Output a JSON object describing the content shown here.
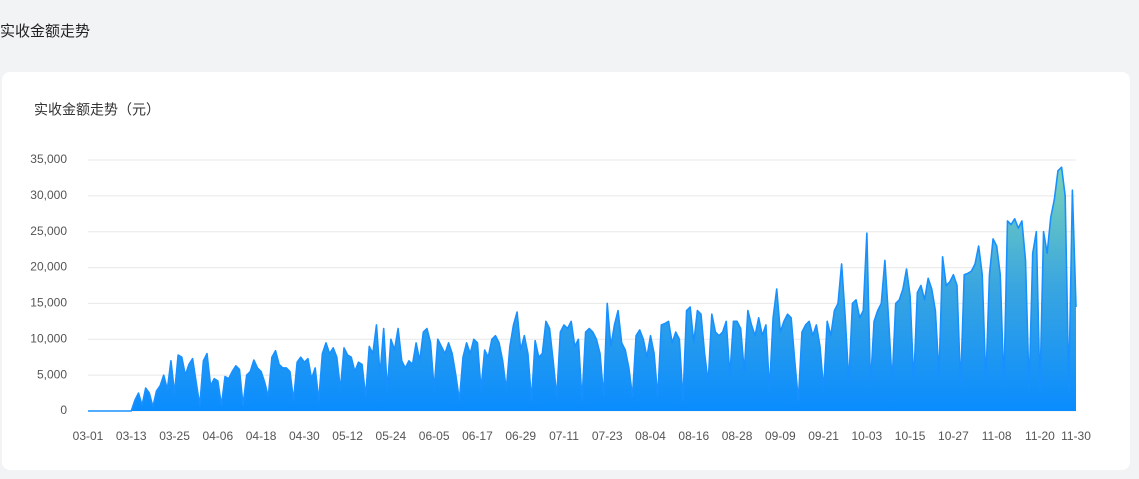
{
  "header": {
    "title": "实收金额走势"
  },
  "chart_data": {
    "type": "area",
    "title": "实收金额走势（元）",
    "categories": [
      "03-01",
      null,
      null,
      null,
      null,
      null,
      null,
      null,
      null,
      null,
      null,
      null,
      "03-13",
      null,
      null,
      null,
      null,
      null,
      null,
      null,
      null,
      null,
      null,
      null,
      "03-25",
      null,
      null,
      null,
      null,
      null,
      null,
      null,
      null,
      null,
      null,
      null,
      "04-06",
      null,
      null,
      null,
      null,
      null,
      null,
      null,
      null,
      null,
      null,
      null,
      "04-18",
      null,
      null,
      null,
      null,
      null,
      null,
      null,
      null,
      null,
      null,
      null,
      "04-30",
      null,
      null,
      null,
      null,
      null,
      null,
      null,
      null,
      null,
      null,
      null,
      "05-12",
      null,
      null,
      null,
      null,
      null,
      null,
      null,
      null,
      null,
      null,
      null,
      "05-24",
      null,
      null,
      null,
      null,
      null,
      null,
      null,
      null,
      null,
      null,
      null,
      "06-05",
      null,
      null,
      null,
      null,
      null,
      null,
      null,
      null,
      null,
      null,
      null,
      "06-17",
      null,
      null,
      null,
      null,
      null,
      null,
      null,
      null,
      null,
      null,
      null,
      "06-29",
      null,
      null,
      null,
      null,
      null,
      null,
      null,
      null,
      null,
      null,
      null,
      "07-11",
      null,
      null,
      null,
      null,
      null,
      null,
      null,
      null,
      null,
      null,
      null,
      "07-23",
      null,
      null,
      null,
      null,
      null,
      null,
      null,
      null,
      null,
      null,
      null,
      "08-04",
      null,
      null,
      null,
      null,
      null,
      null,
      null,
      null,
      null,
      null,
      null,
      "08-16",
      null,
      null,
      null,
      null,
      null,
      null,
      null,
      null,
      null,
      null,
      null,
      "08-28",
      null,
      null,
      null,
      null,
      null,
      null,
      null,
      null,
      null,
      null,
      null,
      "09-09",
      null,
      null,
      null,
      null,
      null,
      null,
      null,
      null,
      null,
      null,
      null,
      "09-21",
      null,
      null,
      null,
      null,
      null,
      null,
      null,
      null,
      null,
      null,
      null,
      "10-03",
      null,
      null,
      null,
      null,
      null,
      null,
      null,
      null,
      null,
      null,
      null,
      "10-15",
      null,
      null,
      null,
      null,
      null,
      null,
      null,
      null,
      null,
      null,
      null,
      "10-27",
      null,
      null,
      null,
      null,
      null,
      null,
      null,
      null,
      null,
      null,
      null,
      "11-08",
      null,
      null,
      null,
      null,
      null,
      null,
      null,
      null,
      null,
      null,
      null,
      "11-20",
      null,
      null,
      null,
      null,
      null,
      null,
      null,
      null,
      null,
      "11-30"
    ],
    "values": [
      0,
      0,
      0,
      0,
      0,
      0,
      0,
      0,
      0,
      0,
      0,
      0,
      0,
      1500,
      2500,
      800,
      3200,
      2500,
      600,
      2800,
      3500,
      5000,
      3000,
      7000,
      2500,
      7800,
      7500,
      5000,
      6500,
      7300,
      4000,
      800,
      7000,
      8000,
      3500,
      4500,
      4200,
      800,
      4800,
      4500,
      5500,
      6300,
      5800,
      800,
      5000,
      5500,
      7100,
      6000,
      5500,
      4000,
      2000,
      7500,
      8400,
      6500,
      6000,
      6000,
      5500,
      1500,
      6800,
      7500,
      6800,
      7300,
      4500,
      6000,
      1500,
      8000,
      9500,
      8000,
      8800,
      7500,
      3000,
      8800,
      7800,
      7500,
      5500,
      6800,
      6500,
      2000,
      9000,
      8000,
      12000,
      5000,
      11500,
      3000,
      10000,
      8500,
      11500,
      7000,
      6000,
      7000,
      6500,
      9500,
      7000,
      11000,
      11500,
      9500,
      3000,
      10000,
      9000,
      8000,
      9500,
      8000,
      5000,
      1500,
      7500,
      9500,
      8000,
      10000,
      9500,
      3000,
      8500,
      7500,
      10000,
      10500,
      9500,
      7000,
      3000,
      9000,
      12000,
      13800,
      8500,
      10500,
      8000,
      1500,
      9800,
      7500,
      8000,
      12500,
      11500,
      7000,
      2000,
      11000,
      12000,
      11500,
      12500,
      9000,
      10000,
      1500,
      11000,
      11500,
      11000,
      10000,
      8000,
      2000,
      15000,
      9000,
      12000,
      14000,
      9500,
      8500,
      6000,
      2000,
      10500,
      11300,
      10000,
      7500,
      10500,
      8000,
      2000,
      12000,
      12200,
      12500,
      9500,
      11000,
      10000,
      1500,
      14000,
      14500,
      9500,
      14000,
      13500,
      8000,
      4000,
      13500,
      11000,
      10500,
      11000,
      12500,
      5000,
      12500,
      12500,
      11500,
      5500,
      14000,
      12000,
      10500,
      13000,
      10500,
      12000,
      3000,
      13000,
      17000,
      11000,
      12500,
      13500,
      13000,
      7000,
      1500,
      11000,
      12000,
      12500,
      10500,
      12000,
      9000,
      3000,
      12500,
      10500,
      14000,
      15000,
      20500,
      13000,
      4000,
      15000,
      15500,
      13000,
      14000,
      24800,
      3500,
      12500,
      14000,
      15000,
      21000,
      13000,
      4000,
      15000,
      15500,
      17000,
      19800,
      16000,
      4000,
      16500,
      17500,
      15500,
      18500,
      17000,
      14000,
      5000,
      21500,
      17500,
      18000,
      19000,
      17500,
      3500,
      19000,
      19200,
      19500,
      20500,
      23000,
      19000,
      4000,
      19000,
      24000,
      23000,
      19000,
      3500,
      26500,
      26000,
      26800,
      25500,
      26500,
      21000,
      3000,
      22000,
      25000,
      3000,
      25000,
      22000,
      27000,
      29500,
      33500,
      34000,
      30000,
      3000,
      30800,
      14500
    ],
    "color": "#1890ff",
    "ylim": [
      0,
      35000
    ],
    "yticks": [
      0,
      {
        "value": 5000,
        "label": "5,000"
      },
      {
        "value": 10000,
        "label": "10,000"
      },
      {
        "value": 15000,
        "label": "15,000"
      },
      {
        "value": 20000,
        "label": "20,000"
      },
      {
        "value": 25000,
        "label": "25,000"
      },
      {
        "value": 30000,
        "label": "30,000"
      },
      {
        "value": 35000,
        "label": "35,000"
      }
    ],
    "grid": true
  }
}
